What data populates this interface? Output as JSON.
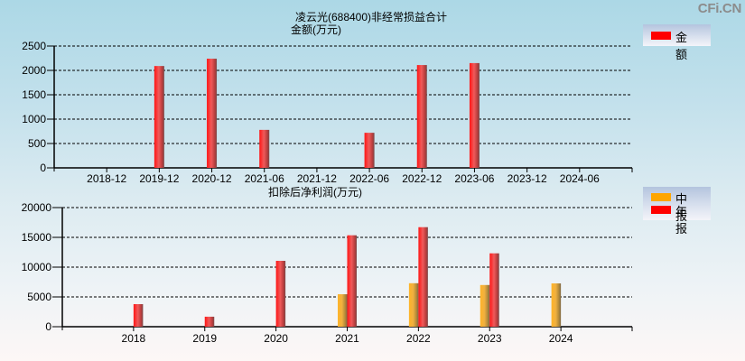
{
  "header": {
    "title": "凌云光(688400)非经常损益合计",
    "watermark": "CFi.CN"
  },
  "colors": {
    "year_report": "#ff0000",
    "mid_report": "#ffa500",
    "grid": "#000000"
  },
  "top_chart": {
    "subtitle": "金额(万元)",
    "legend": [
      {
        "label": "金额",
        "color": "#ff0000"
      }
    ]
  },
  "bottom_chart": {
    "subtitle": "扣除后净利润(万元)",
    "legend": [
      {
        "label": "中报",
        "color": "#ffa500"
      },
      {
        "label": "年报",
        "color": "#ff0000"
      }
    ]
  },
  "chart_data": [
    {
      "type": "bar",
      "title": "凌云光(688400)非经常损益合计",
      "ylabel": "金额(万元)",
      "xlabel": "",
      "categories": [
        "2018-12",
        "2019-12",
        "2020-12",
        "2021-06",
        "2021-12",
        "2022-06",
        "2022-12",
        "2023-06",
        "2023-12",
        "2024-06"
      ],
      "series": [
        {
          "name": "金额",
          "values": [
            null,
            2090,
            2240,
            780,
            null,
            720,
            2110,
            2150,
            null,
            null
          ]
        }
      ],
      "ylim": [
        0,
        2500
      ],
      "yticks": [
        0,
        500,
        1000,
        1500,
        2000,
        2500
      ],
      "grid": true,
      "legend_position": "top-right"
    },
    {
      "type": "bar",
      "title": "扣除后净利润(万元)",
      "ylabel": "扣除后净利润(万元)",
      "xlabel": "",
      "categories": [
        "2018",
        "2019",
        "2020",
        "2021",
        "2022",
        "2023",
        "2024"
      ],
      "series": [
        {
          "name": "中报",
          "values": [
            null,
            null,
            null,
            5450,
            7300,
            7000,
            7270
          ]
        },
        {
          "name": "年报",
          "values": [
            3790,
            1680,
            11060,
            15350,
            16710,
            12320,
            null
          ]
        }
      ],
      "ylim": [
        0,
        20000
      ],
      "yticks": [
        0,
        5000,
        10000,
        15000,
        20000
      ],
      "grid": true,
      "legend_position": "top-right"
    }
  ]
}
